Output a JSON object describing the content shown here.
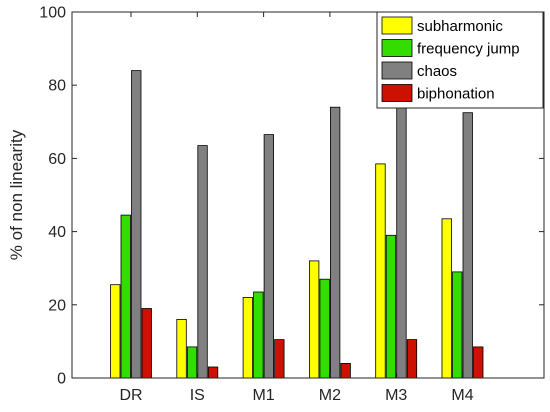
{
  "chart_data": {
    "type": "bar",
    "categories": [
      "DR",
      "IS",
      "M1",
      "M2",
      "M3",
      "M4"
    ],
    "series": [
      {
        "name": "subharmonic",
        "color": "#ffff00",
        "values": [
          25.5,
          16,
          22,
          32,
          58.5,
          43.5
        ]
      },
      {
        "name": "frequency jump",
        "color": "#33dd00",
        "values": [
          44.5,
          8.5,
          23.5,
          27,
          39,
          29
        ]
      },
      {
        "name": "chaos",
        "color": "#808080",
        "values": [
          84,
          63.5,
          66.5,
          74,
          80,
          72.5
        ]
      },
      {
        "name": "biphonation",
        "color": "#cc1100",
        "values": [
          19,
          3,
          10.5,
          4,
          10.5,
          8.5
        ]
      }
    ],
    "title": "",
    "xlabel": "",
    "ylabel": "% of non linearity",
    "ylim": [
      0,
      100
    ],
    "yticks": [
      "0",
      "20",
      "40",
      "60",
      "80",
      "100"
    ],
    "grid": false,
    "legend_position": "top-right"
  }
}
